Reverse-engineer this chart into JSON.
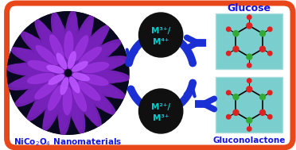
{
  "bg_color": "#ffffff",
  "border_color": "#e8471a",
  "nano_circle_color": "#08081e",
  "nano_text_color": "#1515e0",
  "arrow_color": "#1a2fd4",
  "bubble_color": "#101010",
  "label_color": "#00cccc",
  "right_label_color": "#1515e0",
  "teal_box_color": "#7acfcf",
  "glucose_label": "Glucose",
  "gluconolactone_label": "Gluconolactone",
  "nano_label": "NiCo$_2$O$_4$ Nanomaterials",
  "top_ion": "M³⁺/\nM⁴⁺",
  "bot_ion": "M²⁺/\nM³⁺"
}
